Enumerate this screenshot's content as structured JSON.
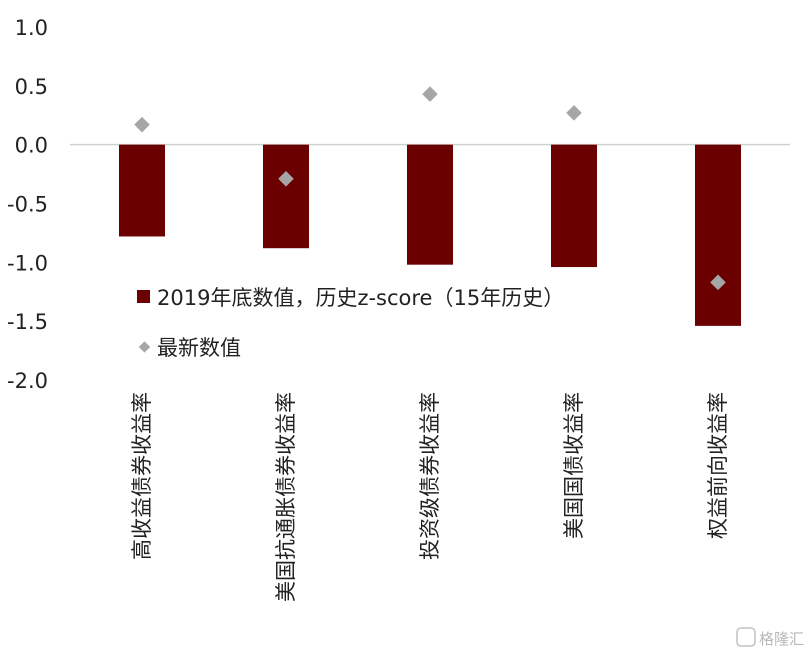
{
  "chart_data": {
    "type": "bar",
    "categories": [
      "高收益债券收益率",
      "美国抗通胀债券收益率",
      "投资级债券收益率",
      "美国国债收益率",
      "权益前向收益率"
    ],
    "series": [
      {
        "name": "2019年底数值，历史z-score（15年历史）",
        "type": "bar",
        "values": [
          -0.78,
          -0.88,
          -1.02,
          -1.04,
          -1.54
        ],
        "color": "#6b0000"
      },
      {
        "name": "最新数值",
        "type": "scatter",
        "values": [
          0.17,
          -0.29,
          0.43,
          0.27,
          -1.17
        ],
        "color": "#a6a6a6"
      }
    ],
    "yticks": [
      "1.0",
      "0.5",
      "0.0",
      "-0.5",
      "-1.0",
      "-1.5",
      "-2.0"
    ],
    "ylim": [
      -2.0,
      1.0
    ],
    "legend_position": "center-left",
    "grid": false
  },
  "watermark": "格隆汇"
}
